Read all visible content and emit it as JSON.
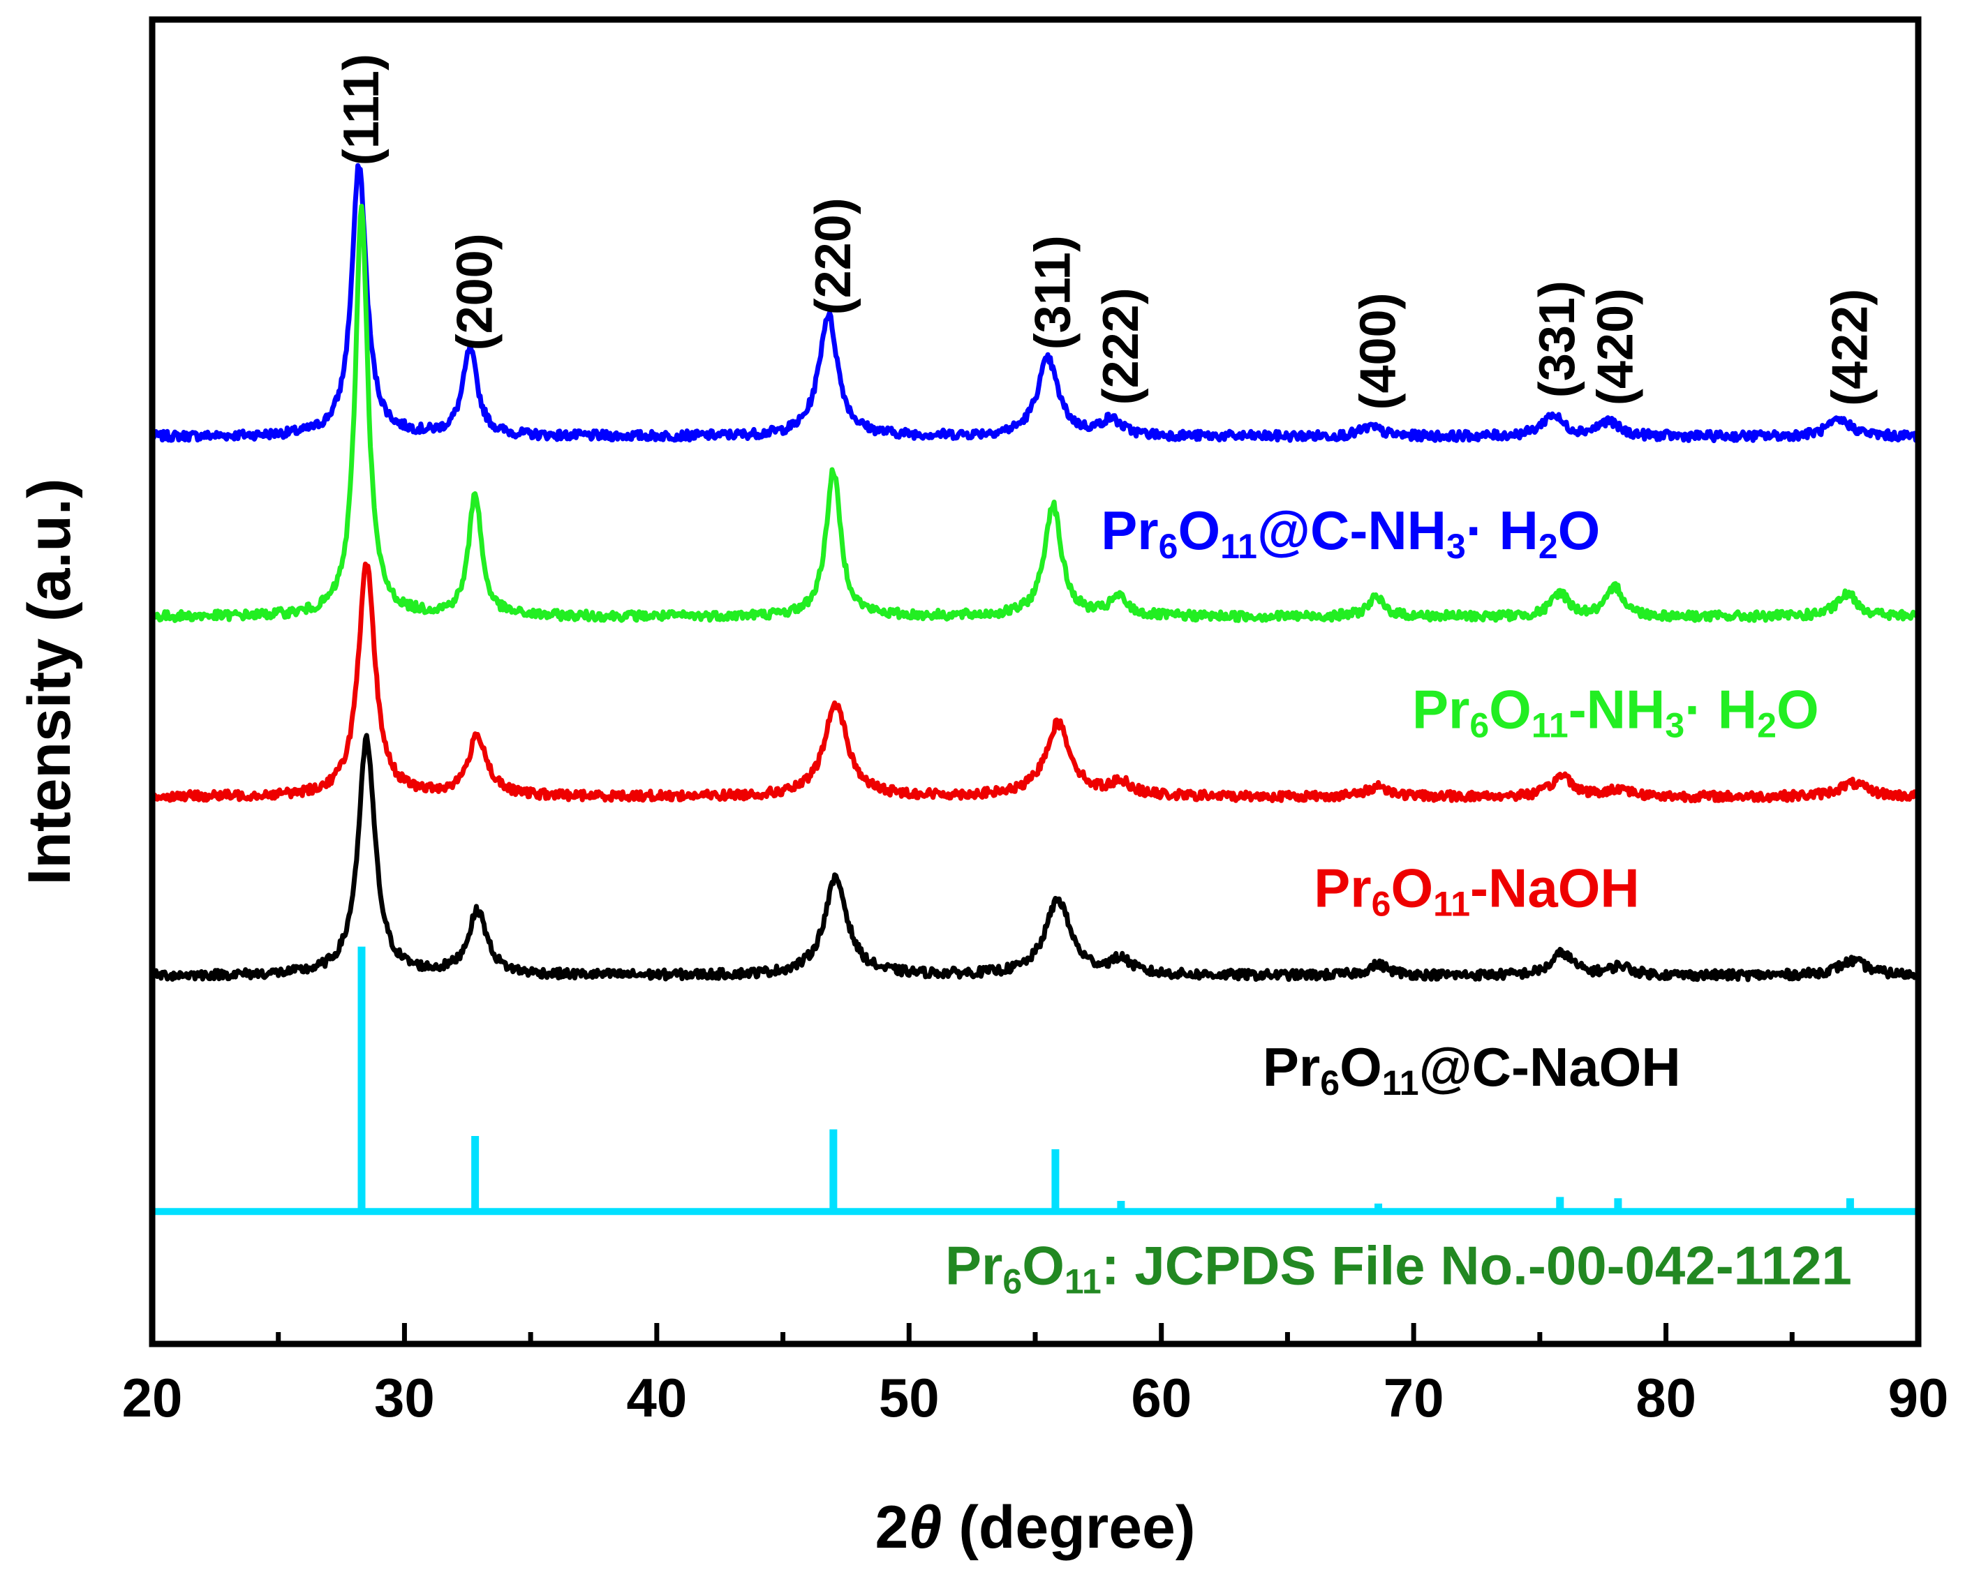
{
  "chart_data": {
    "type": "line",
    "title": "",
    "xlabel": "2θ (degree)",
    "xlabel_parts": {
      "prefix": "2",
      "symbol": "θ",
      "suffix": " (degree)"
    },
    "ylabel": "Intensity (a.u.)",
    "xlim": [
      20,
      90
    ],
    "xticks": [
      20,
      30,
      40,
      50,
      60,
      70,
      80,
      90
    ],
    "ylim": [
      0,
      1
    ],
    "yticks": [],
    "grid": false,
    "peak_labels": [
      {
        "hkl": "(111)",
        "x": 28.3
      },
      {
        "hkl": "(200)",
        "x": 32.8
      },
      {
        "hkl": "(220)",
        "x": 47.0
      },
      {
        "hkl": "(311)",
        "x": 55.7
      },
      {
        "hkl": "(222)",
        "x": 58.4
      },
      {
        "hkl": "(400)",
        "x": 68.6
      },
      {
        "hkl": "(331)",
        "x": 75.7
      },
      {
        "hkl": "(420)",
        "x": 78.0
      },
      {
        "hkl": "(422)",
        "x": 87.3
      }
    ],
    "series": [
      {
        "name": "Pr6O11@C-NH3·H2O",
        "label_parts": [
          [
            "Pr",
            ""
          ],
          [
            "6",
            "sub"
          ],
          [
            "O",
            ""
          ],
          [
            "11",
            "sub"
          ],
          [
            "@C-NH",
            ""
          ],
          [
            "3",
            "sub"
          ],
          [
            "·  H",
            ""
          ],
          [
            "2",
            "sub"
          ],
          [
            "O",
            ""
          ]
        ],
        "color": "#0000ff",
        "baseline": 0.685,
        "label_x": 67.5,
        "label_y": 0.6,
        "peaks": [
          {
            "x": 28.2,
            "h": 0.205,
            "w": 0.35
          },
          {
            "x": 32.6,
            "h": 0.065,
            "w": 0.35
          },
          {
            "x": 46.8,
            "h": 0.092,
            "w": 0.45
          },
          {
            "x": 55.5,
            "h": 0.058,
            "w": 0.5
          },
          {
            "x": 58.0,
            "h": 0.012,
            "w": 0.5
          },
          {
            "x": 68.3,
            "h": 0.007,
            "w": 0.5
          },
          {
            "x": 75.5,
            "h": 0.016,
            "w": 0.5
          },
          {
            "x": 77.7,
            "h": 0.011,
            "w": 0.5
          },
          {
            "x": 86.9,
            "h": 0.012,
            "w": 0.6
          }
        ]
      },
      {
        "name": "Pr6O11-NH3·H2O",
        "label_parts": [
          [
            "Pr",
            ""
          ],
          [
            "6",
            "sub"
          ],
          [
            "O",
            ""
          ],
          [
            "11",
            "sub"
          ],
          [
            "-NH",
            ""
          ],
          [
            "3",
            "sub"
          ],
          [
            "·  H",
            ""
          ],
          [
            "2",
            "sub"
          ],
          [
            "O",
            ""
          ]
        ],
        "color": "#22ee22",
        "baseline": 0.549,
        "label_x": 78.0,
        "label_y": 0.465,
        "peaks": [
          {
            "x": 28.3,
            "h": 0.31,
            "w": 0.3
          },
          {
            "x": 32.8,
            "h": 0.093,
            "w": 0.3
          },
          {
            "x": 47.0,
            "h": 0.11,
            "w": 0.35
          },
          {
            "x": 55.7,
            "h": 0.085,
            "w": 0.4
          },
          {
            "x": 58.3,
            "h": 0.014,
            "w": 0.4
          },
          {
            "x": 68.5,
            "h": 0.014,
            "w": 0.4
          },
          {
            "x": 75.8,
            "h": 0.018,
            "w": 0.4
          },
          {
            "x": 78.0,
            "h": 0.022,
            "w": 0.4
          },
          {
            "x": 87.2,
            "h": 0.017,
            "w": 0.5
          }
        ]
      },
      {
        "name": "Pr6O11-NaOH",
        "label_parts": [
          [
            "Pr",
            ""
          ],
          [
            "6",
            "sub"
          ],
          [
            "O",
            ""
          ],
          [
            "11",
            "sub"
          ],
          [
            "-NaOH",
            ""
          ]
        ],
        "color": "#ee0000",
        "baseline": 0.413,
        "label_x": 72.5,
        "label_y": 0.33,
        "peaks": [
          {
            "x": 28.5,
            "h": 0.175,
            "w": 0.4
          },
          {
            "x": 32.9,
            "h": 0.045,
            "w": 0.45
          },
          {
            "x": 47.1,
            "h": 0.07,
            "w": 0.55
          },
          {
            "x": 55.9,
            "h": 0.055,
            "w": 0.6
          },
          {
            "x": 58.4,
            "h": 0.01,
            "w": 0.5
          },
          {
            "x": 68.6,
            "h": 0.008,
            "w": 0.5
          },
          {
            "x": 75.9,
            "h": 0.016,
            "w": 0.5
          },
          {
            "x": 78.2,
            "h": 0.006,
            "w": 0.5
          },
          {
            "x": 87.4,
            "h": 0.01,
            "w": 0.7
          }
        ]
      },
      {
        "name": "Pr6O11@C-NaOH",
        "label_parts": [
          [
            "Pr",
            ""
          ],
          [
            "6",
            "sub"
          ],
          [
            "O",
            ""
          ],
          [
            "11",
            "sub"
          ],
          [
            "@C-NaOH",
            ""
          ]
        ],
        "color": "#000000",
        "baseline": 0.278,
        "label_x": 72.3,
        "label_y": 0.195,
        "peaks": [
          {
            "x": 28.5,
            "h": 0.178,
            "w": 0.4
          },
          {
            "x": 32.9,
            "h": 0.048,
            "w": 0.45
          },
          {
            "x": 47.1,
            "h": 0.073,
            "w": 0.55
          },
          {
            "x": 55.9,
            "h": 0.057,
            "w": 0.6
          },
          {
            "x": 58.4,
            "h": 0.011,
            "w": 0.5
          },
          {
            "x": 68.6,
            "h": 0.008,
            "w": 0.5
          },
          {
            "x": 75.9,
            "h": 0.017,
            "w": 0.5
          },
          {
            "x": 78.2,
            "h": 0.007,
            "w": 0.5
          },
          {
            "x": 87.4,
            "h": 0.011,
            "w": 0.7
          }
        ]
      }
    ],
    "reference": {
      "name": "Pr6O11: JCPDS File No.-00-042-1121",
      "label_parts": [
        [
          "Pr",
          ""
        ],
        [
          "6",
          "sub"
        ],
        [
          "O",
          ""
        ],
        [
          "11",
          "sub"
        ],
        [
          ": JCPDS File No.-00-042-1121",
          ""
        ]
      ],
      "color": "#00e0ff",
      "label_color": "#228822",
      "baseline": 0.1,
      "label_x": 69.4,
      "label_y": 0.045,
      "sticks": [
        {
          "x": 28.3,
          "h": 0.2
        },
        {
          "x": 32.8,
          "h": 0.057
        },
        {
          "x": 47.0,
          "h": 0.062
        },
        {
          "x": 55.8,
          "h": 0.047
        },
        {
          "x": 58.4,
          "h": 0.008
        },
        {
          "x": 68.6,
          "h": 0.006
        },
        {
          "x": 75.8,
          "h": 0.011
        },
        {
          "x": 78.1,
          "h": 0.01
        },
        {
          "x": 87.3,
          "h": 0.01
        }
      ]
    }
  }
}
